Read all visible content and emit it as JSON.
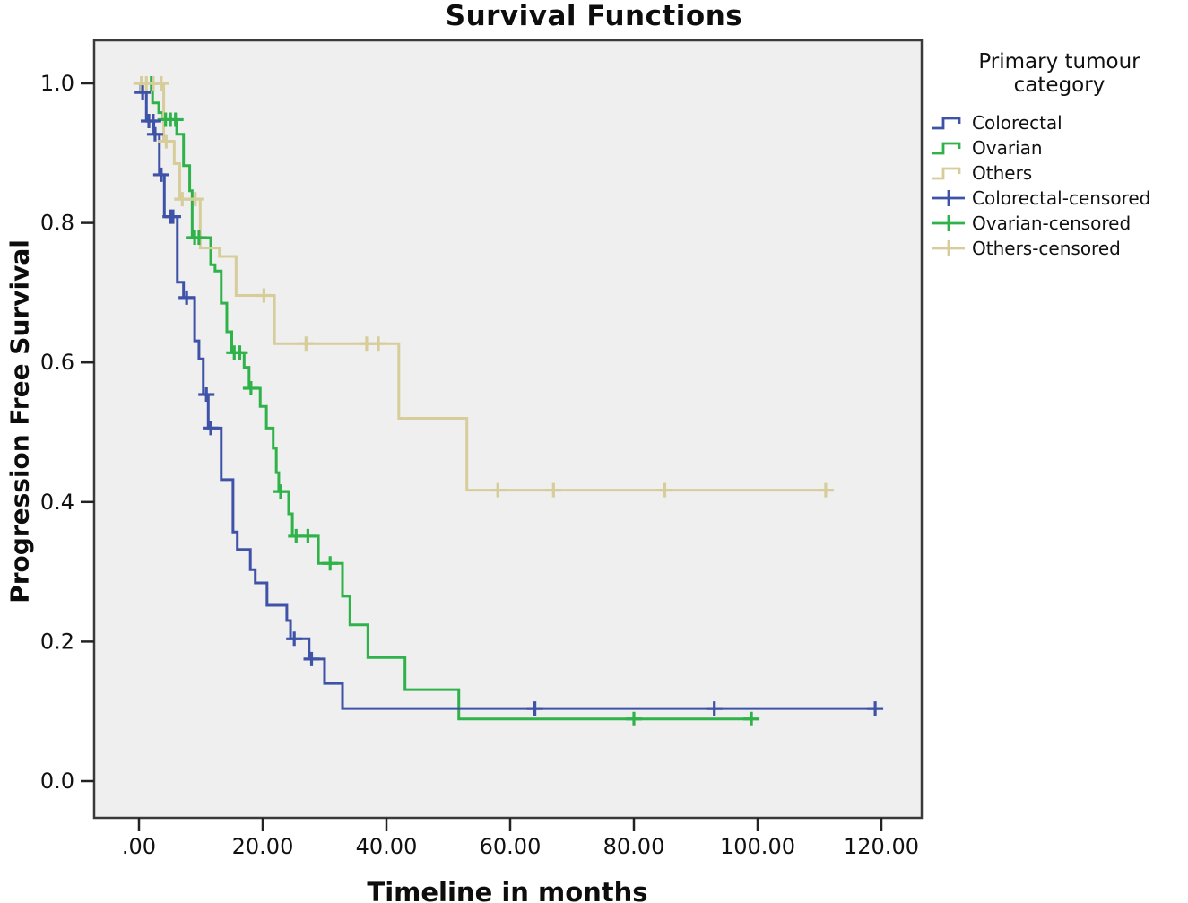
{
  "title": "Survival Functions",
  "axes": {
    "x": {
      "label": "Timeline in months",
      "ticks": [
        {
          "value": 0,
          "label": ".00"
        },
        {
          "value": 20,
          "label": "20.00"
        },
        {
          "value": 40,
          "label": "40.00"
        },
        {
          "value": 60,
          "label": "60.00"
        },
        {
          "value": 80,
          "label": "80.00"
        },
        {
          "value": 100,
          "label": "100.00"
        },
        {
          "value": 120,
          "label": "120.00"
        }
      ]
    },
    "y": {
      "label": "Progression Free Survival",
      "ticks": [
        {
          "value": 0.0,
          "label": "0.0"
        },
        {
          "value": 0.2,
          "label": "0.2"
        },
        {
          "value": 0.4,
          "label": "0.4"
        },
        {
          "value": 0.6,
          "label": "0.6"
        },
        {
          "value": 0.8,
          "label": "0.8"
        },
        {
          "value": 1.0,
          "label": "1.0"
        }
      ]
    }
  },
  "legend": {
    "title": "Primary tumour category",
    "items": [
      {
        "label": "Colorectal",
        "glyph": "step",
        "color": "#3E53A8"
      },
      {
        "label": "Ovarian",
        "glyph": "step",
        "color": "#2FB24A"
      },
      {
        "label": "Others",
        "glyph": "step",
        "color": "#D6CD9B"
      },
      {
        "label": "Colorectal-censored",
        "glyph": "plus",
        "color": "#3E53A8"
      },
      {
        "label": "Ovarian-censored",
        "glyph": "plus",
        "color": "#2FB24A"
      },
      {
        "label": "Others-censored",
        "glyph": "plus",
        "color": "#D6CD9B"
      }
    ]
  },
  "chart_data": {
    "type": "line",
    "subtype": "kaplan-meier-step",
    "title": "Survival Functions",
    "xlabel": "Timeline in months",
    "ylabel": "Progression Free Survival",
    "xlim": [
      0,
      120
    ],
    "ylim": [
      0.0,
      1.0
    ],
    "grid": false,
    "legend_position": "top-right",
    "plot_background": "#F0EFF0",
    "border_color": "#3A3A3A",
    "series": [
      {
        "name": "Ovarian",
        "color": "#2FB24A",
        "end_t": 99.3,
        "steps": [
          [
            0,
            1.0
          ],
          [
            2.2,
            0.972
          ],
          [
            3.2,
            0.958
          ],
          [
            3.9,
            0.948
          ],
          [
            6.1,
            0.927
          ],
          [
            7.2,
            0.882
          ],
          [
            8.2,
            0.846
          ],
          [
            8.6,
            0.779
          ],
          [
            11.6,
            0.74
          ],
          [
            12.3,
            0.731
          ],
          [
            13.3,
            0.685
          ],
          [
            14.2,
            0.644
          ],
          [
            15.0,
            0.614
          ],
          [
            17.0,
            0.593
          ],
          [
            17.8,
            0.563
          ],
          [
            19.6,
            0.537
          ],
          [
            20.6,
            0.506
          ],
          [
            21.7,
            0.477
          ],
          [
            22.2,
            0.442
          ],
          [
            22.6,
            0.415
          ],
          [
            24.2,
            0.383
          ],
          [
            24.8,
            0.351
          ],
          [
            29.0,
            0.312
          ],
          [
            32.9,
            0.265
          ],
          [
            34.1,
            0.224
          ],
          [
            37.0,
            0.177
          ],
          [
            43.0,
            0.131
          ],
          [
            51.7,
            0.089
          ]
        ],
        "censored": [
          [
            2.0,
            1.0
          ],
          [
            4.3,
            0.948
          ],
          [
            5.1,
            0.948
          ],
          [
            5.9,
            0.948
          ],
          [
            9.0,
            0.779
          ],
          [
            9.7,
            0.779
          ],
          [
            15.4,
            0.614
          ],
          [
            16.3,
            0.614
          ],
          [
            18.1,
            0.563
          ],
          [
            22.9,
            0.415
          ],
          [
            25.4,
            0.351
          ],
          [
            27.3,
            0.351
          ],
          [
            30.9,
            0.312
          ],
          [
            80,
            0.089
          ],
          [
            99,
            0.089
          ]
        ]
      },
      {
        "name": "Others",
        "color": "#D6CD9B",
        "end_t": 112.3,
        "steps": [
          [
            0,
            1.0
          ],
          [
            4.0,
            0.917
          ],
          [
            5.7,
            0.885
          ],
          [
            6.6,
            0.834
          ],
          [
            9.9,
            0.764
          ],
          [
            13.0,
            0.752
          ],
          [
            15.7,
            0.696
          ],
          [
            21.9,
            0.627
          ],
          [
            42.0,
            0.52
          ],
          [
            53.0,
            0.417
          ]
        ],
        "censored": [
          [
            0.4,
            1.0
          ],
          [
            1.2,
            1.0
          ],
          [
            2.3,
            1.0
          ],
          [
            3.6,
            1.0
          ],
          [
            4.4,
            0.917
          ],
          [
            7.0,
            0.834
          ],
          [
            9.1,
            0.834
          ],
          [
            20.2,
            0.696
          ],
          [
            27.0,
            0.627
          ],
          [
            36.8,
            0.627
          ],
          [
            38.7,
            0.627
          ],
          [
            58,
            0.417
          ],
          [
            67,
            0.417
          ],
          [
            85,
            0.417
          ],
          [
            111,
            0.417
          ]
        ]
      },
      {
        "name": "Colorectal",
        "color": "#3E53A8",
        "end_t": 119.6,
        "steps": [
          [
            0,
            1.0
          ],
          [
            0.3,
            0.987
          ],
          [
            1.2,
            0.946
          ],
          [
            2.4,
            0.927
          ],
          [
            3.3,
            0.869
          ],
          [
            4.1,
            0.809
          ],
          [
            6.2,
            0.715
          ],
          [
            7.2,
            0.693
          ],
          [
            9.0,
            0.631
          ],
          [
            9.7,
            0.605
          ],
          [
            10.4,
            0.554
          ],
          [
            11.2,
            0.506
          ],
          [
            13.3,
            0.432
          ],
          [
            15.2,
            0.357
          ],
          [
            15.9,
            0.332
          ],
          [
            18.0,
            0.303
          ],
          [
            18.8,
            0.284
          ],
          [
            20.7,
            0.252
          ],
          [
            23.9,
            0.23
          ],
          [
            24.5,
            0.204
          ],
          [
            27.5,
            0.175
          ],
          [
            30.0,
            0.14
          ],
          [
            32.9,
            0.104
          ]
        ],
        "censored": [
          [
            0.6,
            0.987
          ],
          [
            1.6,
            0.946
          ],
          [
            2.3,
            0.946
          ],
          [
            2.6,
            0.927
          ],
          [
            3.6,
            0.869
          ],
          [
            5.1,
            0.809
          ],
          [
            5.5,
            0.809
          ],
          [
            7.7,
            0.693
          ],
          [
            10.9,
            0.554
          ],
          [
            11.6,
            0.506
          ],
          [
            25.1,
            0.204
          ],
          [
            27.9,
            0.175
          ],
          [
            64,
            0.104
          ],
          [
            93,
            0.104
          ],
          [
            119,
            0.104
          ]
        ]
      }
    ]
  }
}
